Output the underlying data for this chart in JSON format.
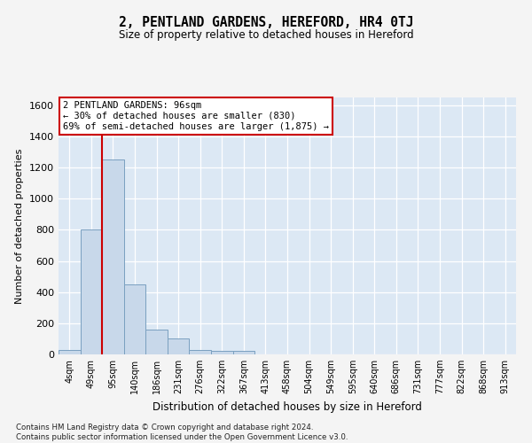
{
  "title": "2, PENTLAND GARDENS, HEREFORD, HR4 0TJ",
  "subtitle": "Size of property relative to detached houses in Hereford",
  "xlabel": "Distribution of detached houses by size in Hereford",
  "ylabel": "Number of detached properties",
  "categories": [
    "4sqm",
    "49sqm",
    "95sqm",
    "140sqm",
    "186sqm",
    "231sqm",
    "276sqm",
    "322sqm",
    "367sqm",
    "413sqm",
    "458sqm",
    "504sqm",
    "549sqm",
    "595sqm",
    "640sqm",
    "686sqm",
    "731sqm",
    "777sqm",
    "822sqm",
    "868sqm",
    "913sqm"
  ],
  "bar_values": [
    30,
    800,
    1250,
    450,
    160,
    100,
    30,
    25,
    20,
    0,
    0,
    0,
    0,
    0,
    0,
    0,
    0,
    0,
    0,
    0,
    0
  ],
  "bar_color": "#c8d8ea",
  "bar_edge_color": "#7aa0c0",
  "vline_x": 1.5,
  "vline_color": "#cc0000",
  "annotation_text": "2 PENTLAND GARDENS: 96sqm\n← 30% of detached houses are smaller (830)\n69% of semi-detached houses are larger (1,875) →",
  "annotation_box_color": "#ffffff",
  "annotation_box_edge": "#cc0000",
  "ylim": [
    0,
    1650
  ],
  "yticks": [
    0,
    200,
    400,
    600,
    800,
    1000,
    1200,
    1400,
    1600
  ],
  "fig_bg": "#f4f4f4",
  "plot_bg": "#dce8f4",
  "grid_color": "#ffffff",
  "footer_line1": "Contains HM Land Registry data © Crown copyright and database right 2024.",
  "footer_line2": "Contains public sector information licensed under the Open Government Licence v3.0."
}
